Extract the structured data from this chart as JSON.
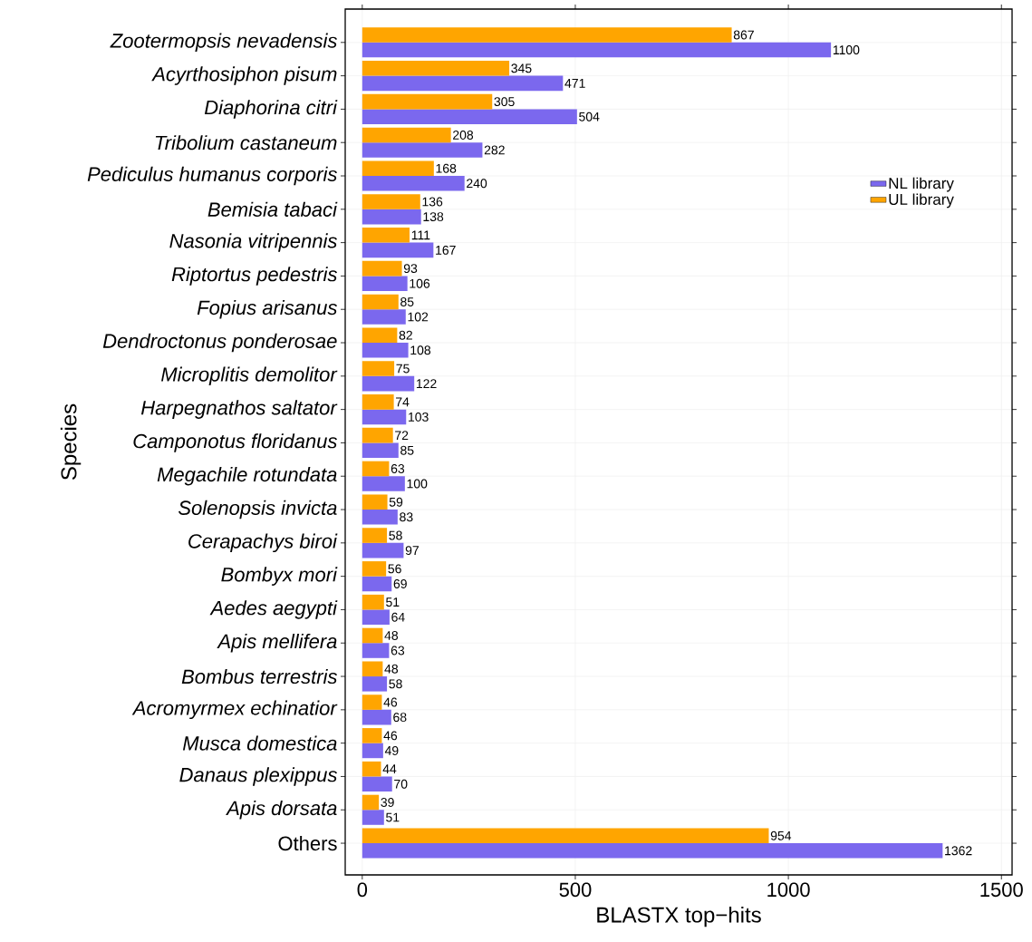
{
  "chart_data": {
    "type": "bar",
    "orientation": "horizontal",
    "xlabel": "BLASTX top−hits",
    "ylabel": "Species",
    "categories": [
      "*Zootermopsis nevadensis*",
      "*Acyrthosiphon pisum*",
      "*Diaphorina citri*",
      "*Tribolium castaneum*",
      "*Pediculus humanus corporis*",
      "*Bemisia tabaci*",
      "*Nasonia vitripennis*",
      "*Riptortus pedestris*",
      "*Fopius arisanus*",
      "*Dendroctonus ponderosae*",
      "*Microplitis demolitor*",
      "*Harpegnathos saltator*",
      "*Camponotus floridanus*",
      "*Megachile rotundata*",
      "*Solenopsis invicta*",
      "*Cerapachys biroi*",
      "*Bombyx mori*",
      "*Aedes aegypti*",
      "*Apis mellifera*",
      "*Bombus terrestris*",
      "*Acromyrmex echinatior*",
      "*Musca domestica*",
      "*Danaus plexippus*",
      "*Apis dorsata*",
      "Others"
    ],
    "series": [
      {
        "name": "NL library",
        "color": "#7b68ee",
        "values": [
          1100,
          471,
          504,
          282,
          240,
          138,
          167,
          106,
          102,
          108,
          122,
          103,
          85,
          100,
          83,
          97,
          69,
          64,
          63,
          58,
          68,
          49,
          70,
          51,
          1362
        ]
      },
      {
        "name": "UL library",
        "color": "#ffa500",
        "values": [
          867,
          345,
          305,
          208,
          168,
          136,
          111,
          93,
          85,
          82,
          75,
          74,
          72,
          63,
          59,
          58,
          56,
          51,
          48,
          48,
          46,
          46,
          44,
          39,
          954
        ]
      }
    ],
    "xlim": [
      -40,
      1525
    ],
    "xticks": [
      0,
      500,
      1000,
      1500
    ],
    "grid": true,
    "legend": "top right",
    "data_labels": true
  }
}
